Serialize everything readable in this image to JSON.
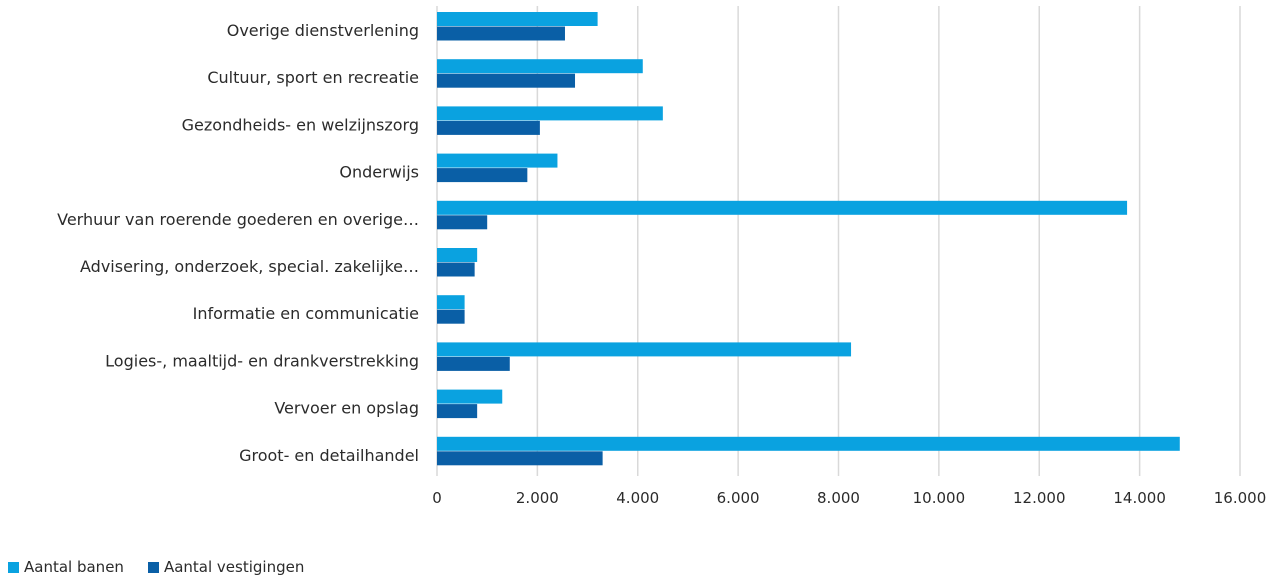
{
  "chart_data": {
    "type": "bar",
    "orientation": "horizontal",
    "categories": [
      "Overige dienstverlening",
      "Cultuur, sport en recreatie",
      "Gezondheids- en welzijnszorg",
      "Onderwijs",
      "Verhuur van roerende goederen en overige…",
      "Advisering, onderzoek, special. zakelijke…",
      "Informatie en communicatie",
      "Logies-, maaltijd- en drankverstrekking",
      "Vervoer en opslag",
      "Groot- en detailhandel"
    ],
    "series": [
      {
        "name": "Aantal banen",
        "color": "#0aa2e0",
        "values": [
          3200,
          4100,
          4500,
          2400,
          13750,
          800,
          550,
          8250,
          1300,
          14800
        ]
      },
      {
        "name": "Aantal vestigingen",
        "color": "#0a5fa6",
        "values": [
          2550,
          2750,
          2050,
          1800,
          1000,
          750,
          550,
          1450,
          800,
          3300
        ]
      }
    ],
    "xlim": [
      0,
      16000
    ],
    "xticks": [
      "0",
      "2.000",
      "4.000",
      "6.000",
      "8.000",
      "10.000",
      "12.000",
      "14.000",
      "16.000"
    ],
    "grid": true,
    "legend_position": "bottom-left"
  }
}
